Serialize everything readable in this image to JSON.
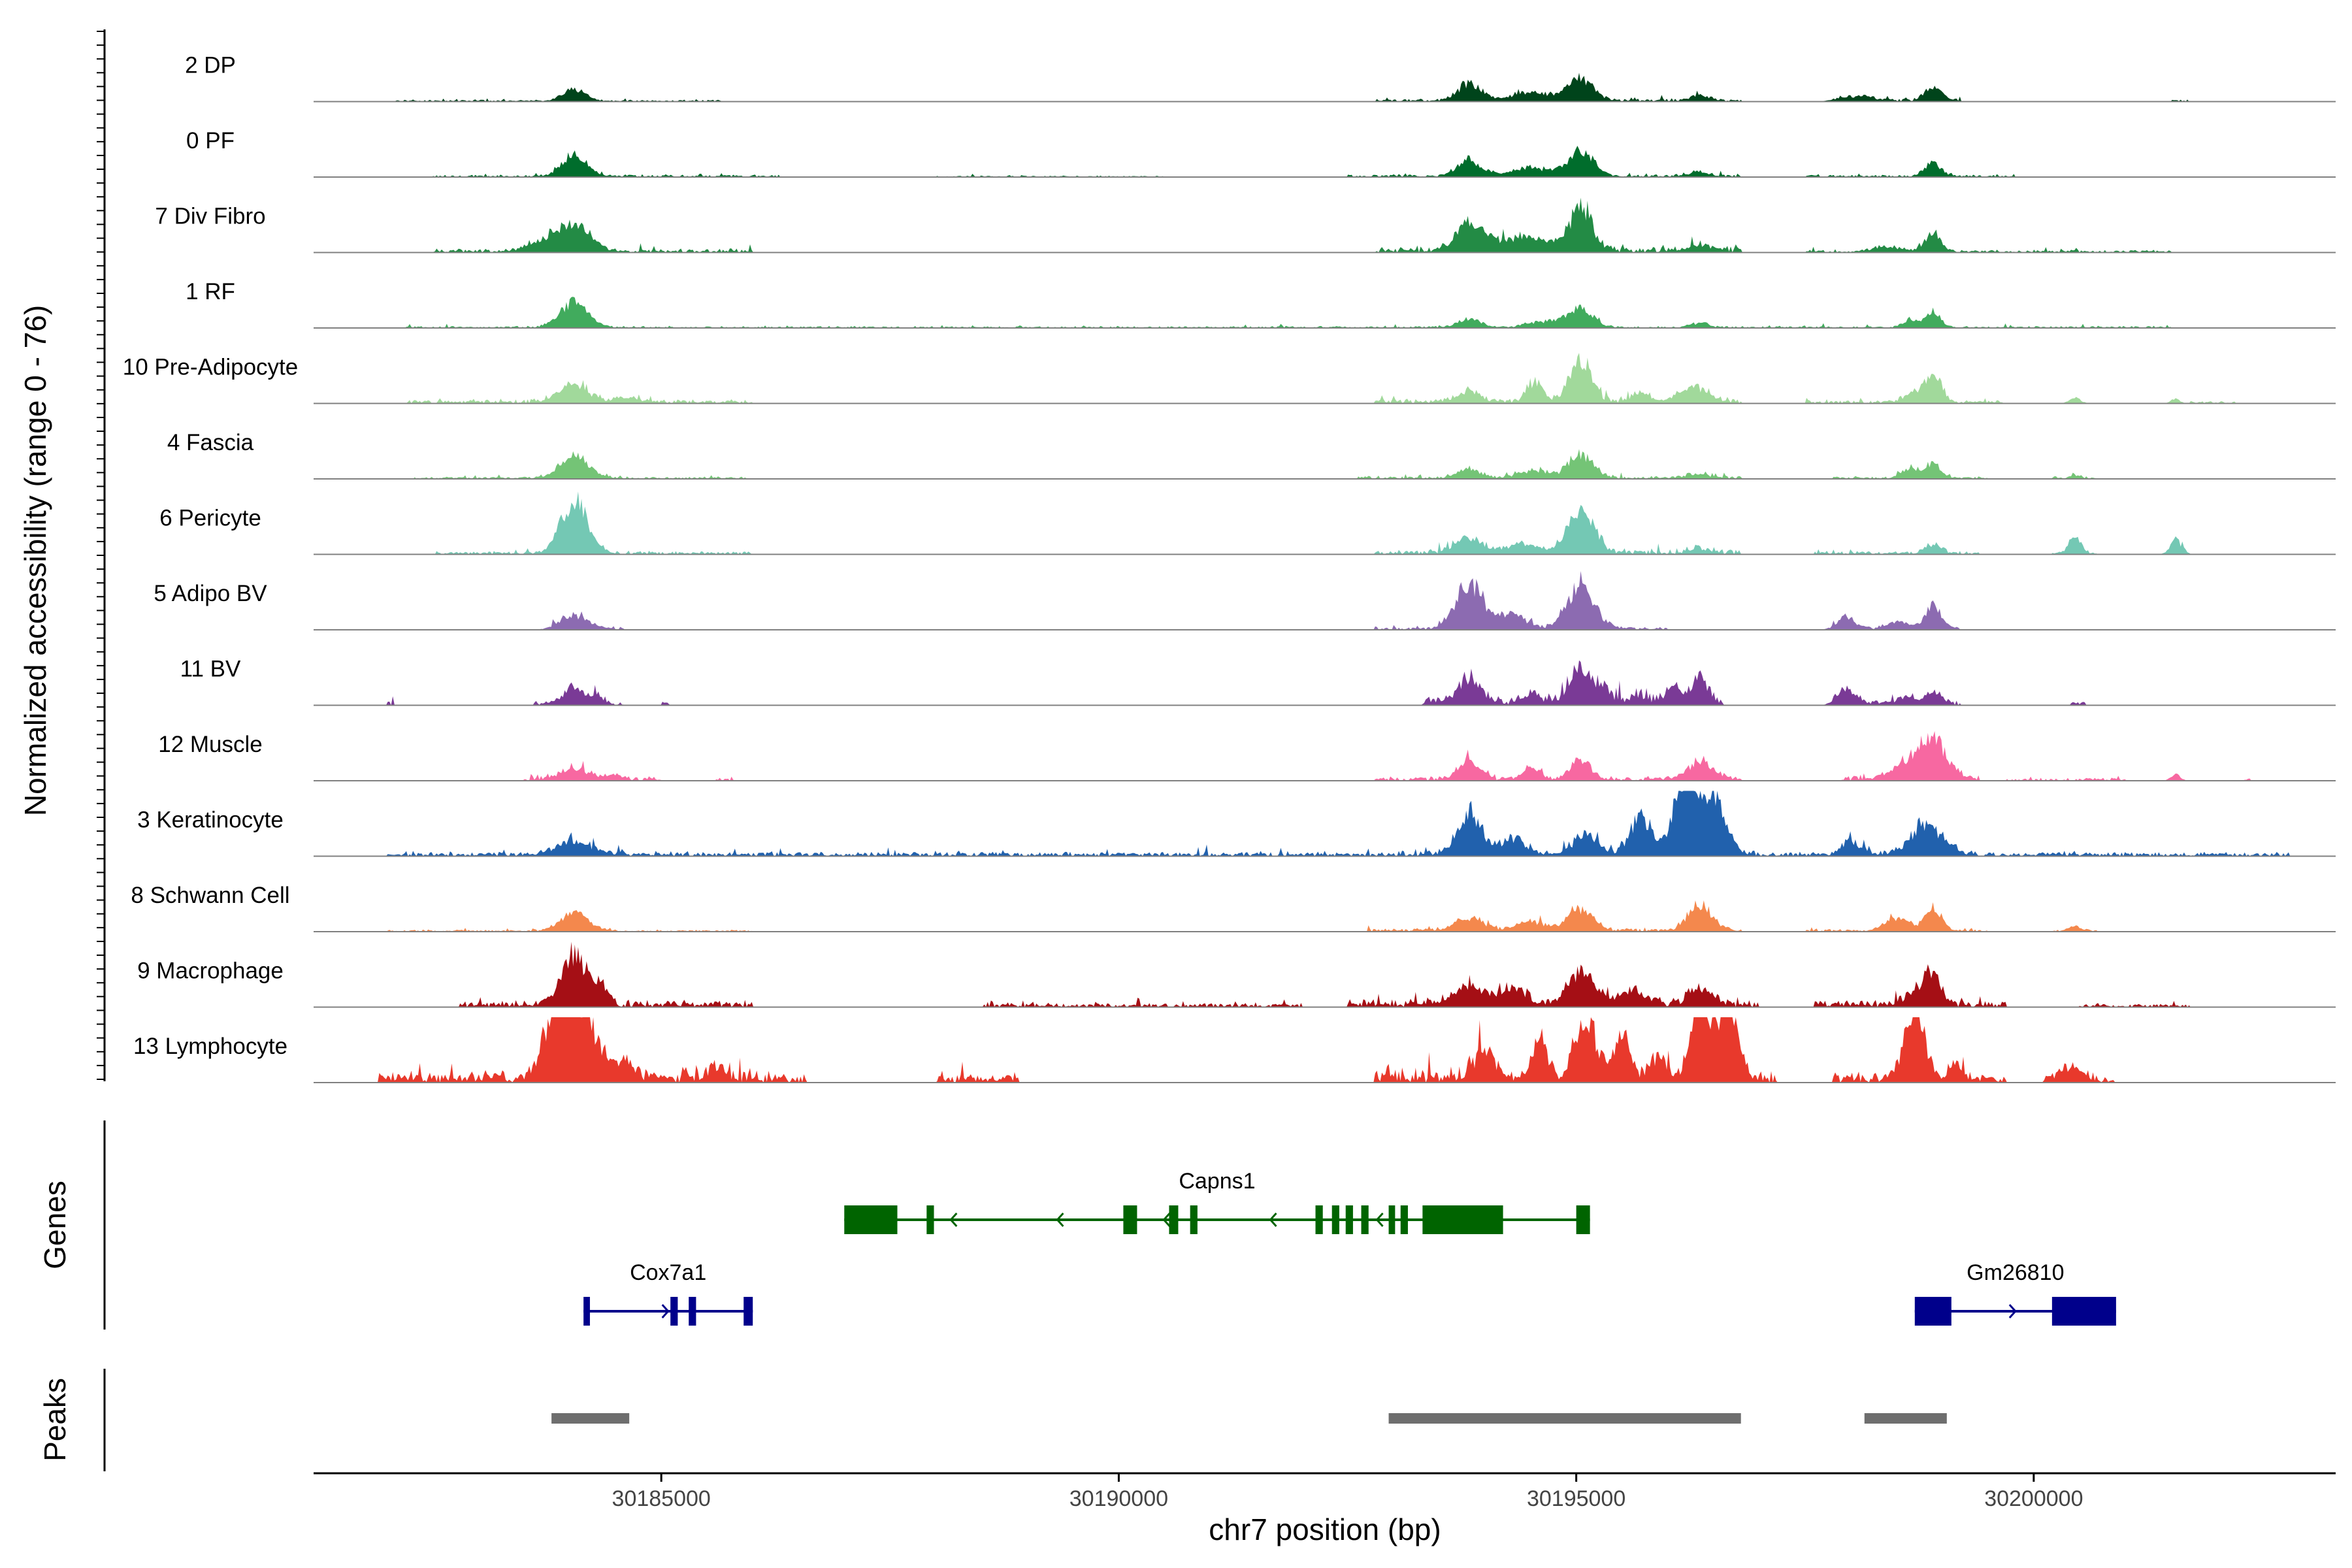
{
  "chart_data": {
    "type": "area",
    "title": "",
    "xlabel": "chr7 position (bp)",
    "ylabel": "Normalized accessibility (range 0 - 76)",
    "ylim": [
      0,
      76
    ],
    "xlim": [
      30181200,
      30203300
    ],
    "x_ticks": [
      30185000,
      30190000,
      30195000,
      30200000
    ],
    "x_tick_labels": [
      "30185000",
      "30190000",
      "30195000",
      "30200000"
    ],
    "panels": {
      "genes": "Genes",
      "peaks": "Peaks"
    },
    "tracks": [
      {
        "name": "2 DP",
        "color": "#00441b",
        "scale": 0.5,
        "peaks": [
          [
            30184050,
            14,
            120
          ],
          [
            30193830,
            20,
            120
          ],
          [
            30194500,
            10,
            200
          ],
          [
            30195050,
            26,
            140
          ],
          [
            30196350,
            6,
            100
          ],
          [
            30198050,
            5,
            180
          ],
          [
            30198900,
            16,
            90
          ]
        ],
        "noise": [
          [
            30182100,
            30185700,
            1
          ],
          [
            30192800,
            30196800,
            1.5
          ],
          [
            30197800,
            30199200,
            1.5
          ],
          [
            30201500,
            30201700,
            1
          ]
        ]
      },
      {
        "name": "0 PF",
        "color": "#006d2c",
        "scale": 0.6,
        "peaks": [
          [
            30184050,
            22,
            130
          ],
          [
            30193830,
            16,
            130
          ],
          [
            30194500,
            8,
            200
          ],
          [
            30195050,
            24,
            140
          ],
          [
            30196350,
            4,
            100
          ],
          [
            30198900,
            12,
            90
          ]
        ],
        "noise": [
          [
            30182500,
            30186300,
            1
          ],
          [
            30188000,
            30190500,
            0.6
          ],
          [
            30192500,
            30196800,
            1.2
          ],
          [
            30197500,
            30199800,
            1
          ]
        ]
      },
      {
        "name": "7 Div Fibro",
        "color": "#238b45",
        "scale": 0.72,
        "peaks": [
          [
            30184050,
            22,
            170
          ],
          [
            30183700,
            8,
            150
          ],
          [
            30193830,
            20,
            150
          ],
          [
            30194400,
            10,
            300
          ],
          [
            30195050,
            32,
            130
          ],
          [
            30196350,
            5,
            120
          ],
          [
            30198900,
            14,
            90
          ],
          [
            30198400,
            4,
            150
          ]
        ],
        "noise": [
          [
            30182500,
            30186000,
            1.5
          ],
          [
            30192800,
            30196800,
            2
          ],
          [
            30197500,
            30201500,
            1
          ]
        ]
      },
      {
        "name": "1 RF",
        "color": "#41ab5d",
        "scale": 0.62,
        "peaks": [
          [
            30184050,
            24,
            150
          ],
          [
            30193830,
            8,
            120
          ],
          [
            30194700,
            6,
            200
          ],
          [
            30195050,
            18,
            130
          ],
          [
            30196350,
            4,
            100
          ],
          [
            30198650,
            8,
            70
          ],
          [
            30198900,
            14,
            80
          ]
        ],
        "noise": [
          [
            30182200,
            30201500,
            0.8
          ]
        ]
      },
      {
        "name": "10 Pre-Adipocyte",
        "color": "#a1d99b",
        "scale": 0.85,
        "peaks": [
          [
            30184050,
            12,
            160
          ],
          [
            30184600,
            4,
            100
          ],
          [
            30193830,
            7,
            120
          ],
          [
            30194550,
            14,
            90
          ],
          [
            30195050,
            30,
            120
          ],
          [
            30195700,
            6,
            100
          ],
          [
            30196300,
            10,
            150
          ],
          [
            30198650,
            6,
            90
          ],
          [
            30198900,
            20,
            90
          ],
          [
            30200450,
            4,
            60
          ],
          [
            30201550,
            3,
            50
          ]
        ],
        "noise": [
          [
            30182200,
            30186000,
            1.2
          ],
          [
            30192800,
            30196800,
            1.5
          ],
          [
            30197500,
            30199700,
            1
          ],
          [
            30201700,
            30202200,
            0.8
          ]
        ]
      },
      {
        "name": "4 Fascia",
        "color": "#74c476",
        "scale": 0.6,
        "peaks": [
          [
            30184050,
            22,
            150
          ],
          [
            30193830,
            8,
            130
          ],
          [
            30194550,
            8,
            140
          ],
          [
            30195050,
            22,
            130
          ],
          [
            30196350,
            4,
            120
          ],
          [
            30198650,
            10,
            90
          ],
          [
            30198900,
            14,
            80
          ],
          [
            30200450,
            3,
            60
          ]
        ],
        "noise": [
          [
            30182300,
            30186000,
            1
          ],
          [
            30192600,
            30196800,
            1.5
          ],
          [
            30197800,
            30199500,
            1
          ],
          [
            30200200,
            30200700,
            0.8
          ]
        ]
      },
      {
        "name": "6 Pericyte",
        "color": "#74c8b4",
        "scale": 0.86,
        "peaks": [
          [
            30184050,
            36,
            140
          ],
          [
            30193830,
            10,
            150
          ],
          [
            30194400,
            6,
            150
          ],
          [
            30195050,
            28,
            140
          ],
          [
            30196350,
            3,
            120
          ],
          [
            30198900,
            6,
            90
          ],
          [
            30200450,
            10,
            70
          ],
          [
            30201550,
            10,
            60
          ]
        ],
        "noise": [
          [
            30182500,
            30186000,
            1
          ],
          [
            30192800,
            30196800,
            1.5
          ],
          [
            30197600,
            30199400,
            1
          ],
          [
            30200200,
            30200700,
            0.8
          ],
          [
            30201500,
            30201700,
            0.8
          ]
        ]
      },
      {
        "name": "5 Adipo BV",
        "color": "#8c6bb1",
        "scale": 0.82,
        "peaks": [
          [
            30184050,
            10,
            150
          ],
          [
            30193830,
            32,
            150
          ],
          [
            30194300,
            10,
            150
          ],
          [
            30195050,
            30,
            150
          ],
          [
            30197950,
            8,
            100
          ],
          [
            30198500,
            6,
            100
          ],
          [
            30198900,
            16,
            90
          ]
        ],
        "noise": [
          [
            30183800,
            30184600,
            1
          ],
          [
            30192800,
            30196000,
            1
          ],
          [
            30197800,
            30199200,
            1
          ]
        ]
      },
      {
        "name": "11 BV",
        "color": "#7a3a96",
        "scale": 0.8,
        "peaks": [
          [
            30184050,
            12,
            120
          ],
          [
            30184300,
            6,
            60
          ],
          [
            30193830,
            18,
            120
          ],
          [
            30194500,
            6,
            120
          ],
          [
            30195050,
            24,
            120
          ],
          [
            30195300,
            8,
            100
          ],
          [
            30195700,
            6,
            80
          ],
          [
            30196050,
            12,
            80
          ],
          [
            30196350,
            20,
            90
          ],
          [
            30197950,
            10,
            100
          ],
          [
            30198600,
            5,
            80
          ],
          [
            30198900,
            8,
            90
          ]
        ],
        "noise": [
          [
            30183600,
            30184600,
            1
          ],
          [
            30193300,
            30196600,
            3
          ],
          [
            30197800,
            30199200,
            1.5
          ],
          [
            30200400,
            30200600,
            1.5
          ],
          [
            30182000,
            30182100,
            1.5
          ],
          [
            30185000,
            30185100,
            1.5
          ]
        ]
      },
      {
        "name": "12 Muscle",
        "color": "#f768a1",
        "scale": 0.75,
        "peaks": [
          [
            30184050,
            8,
            160
          ],
          [
            30184500,
            4,
            80
          ],
          [
            30193830,
            14,
            120
          ],
          [
            30194500,
            8,
            100
          ],
          [
            30195050,
            16,
            110
          ],
          [
            30196350,
            14,
            140
          ],
          [
            30198700,
            16,
            200
          ],
          [
            30198900,
            24,
            120
          ],
          [
            30199150,
            4,
            60
          ],
          [
            30201550,
            5,
            50
          ]
        ],
        "noise": [
          [
            30183500,
            30185000,
            1.5
          ],
          [
            30192800,
            30196800,
            1.5
          ],
          [
            30197900,
            30199400,
            2
          ],
          [
            30199700,
            30201000,
            1
          ],
          [
            30185600,
            30185800,
            1
          ],
          [
            30202300,
            30202400,
            0.8
          ]
        ]
      },
      {
        "name": "3 Keratinocyte",
        "color": "#2161ad",
        "scale": 0.95,
        "peaks": [
          [
            30184050,
            8,
            200
          ],
          [
            30193830,
            24,
            130
          ],
          [
            30194300,
            8,
            150
          ],
          [
            30195100,
            12,
            120
          ],
          [
            30195700,
            22,
            110
          ],
          [
            30196200,
            42,
            140
          ],
          [
            30196500,
            32,
            130
          ],
          [
            30198000,
            8,
            100
          ],
          [
            30198900,
            14,
            150
          ],
          [
            30198700,
            8,
            120
          ]
        ],
        "noise": [
          [
            30182000,
            30202800,
            1.2
          ],
          [
            30193000,
            30197000,
            2
          ],
          [
            30197800,
            30199200,
            1.5
          ]
        ]
      },
      {
        "name": "8 Schwann Cell",
        "color": "#f4884d",
        "scale": 0.62,
        "peaks": [
          [
            30184050,
            16,
            160
          ],
          [
            30193830,
            12,
            150
          ],
          [
            30194500,
            8,
            150
          ],
          [
            30195050,
            20,
            140
          ],
          [
            30196350,
            24,
            130
          ],
          [
            30198500,
            12,
            120
          ],
          [
            30198900,
            22,
            90
          ],
          [
            30200450,
            4,
            80
          ]
        ],
        "noise": [
          [
            30182000,
            30186000,
            0.8
          ],
          [
            30192700,
            30196800,
            1.5
          ],
          [
            30197500,
            30199500,
            1
          ],
          [
            30200200,
            30200700,
            0.8
          ]
        ]
      },
      {
        "name": "9 Macrophage",
        "color": "#a50f15",
        "scale": 0.9,
        "peaks": [
          [
            30184050,
            32,
            140
          ],
          [
            30184350,
            10,
            80
          ],
          [
            30193830,
            12,
            140
          ],
          [
            30194300,
            10,
            150
          ],
          [
            30195050,
            22,
            140
          ],
          [
            30195600,
            8,
            150
          ],
          [
            30196350,
            12,
            110
          ],
          [
            30198700,
            8,
            120
          ],
          [
            30198900,
            18,
            90
          ]
        ],
        "noise": [
          [
            30182800,
            30186000,
            2
          ],
          [
            30192500,
            30197000,
            2.5
          ],
          [
            30197600,
            30199700,
            2
          ],
          [
            30182900,
            30183000,
            2
          ],
          [
            30188500,
            30192000,
            1.2
          ],
          [
            30200500,
            30201700,
            1
          ]
        ]
      },
      {
        "name": "13 Lymphocyte",
        "color": "#e8392c",
        "scale": 1.0,
        "peaks": [
          [
            30183850,
            36,
            140
          ],
          [
            30184050,
            38,
            110
          ],
          [
            30184250,
            24,
            120
          ],
          [
            30184600,
            10,
            100
          ],
          [
            30185600,
            6,
            80
          ],
          [
            30194000,
            14,
            120
          ],
          [
            30194600,
            20,
            80
          ],
          [
            30195100,
            36,
            110
          ],
          [
            30195500,
            24,
            90
          ],
          [
            30195900,
            12,
            80
          ],
          [
            30196350,
            48,
            90
          ],
          [
            30196650,
            46,
            110
          ],
          [
            30198700,
            40,
            110
          ],
          [
            30199150,
            8,
            80
          ],
          [
            30200400,
            8,
            120
          ]
        ],
        "noise": [
          [
            30181900,
            30186400,
            3
          ],
          [
            30186000,
            30186600,
            2
          ],
          [
            30188000,
            30188900,
            2
          ],
          [
            30192800,
            30197200,
            4
          ],
          [
            30197800,
            30199700,
            2.5
          ],
          [
            30200100,
            30200900,
            2
          ],
          [
            30188200,
            30188300,
            3
          ]
        ]
      }
    ],
    "genes": [
      {
        "name": "Capns1",
        "color": "#006400",
        "start": 30187000,
        "end": 30195150,
        "strand": "-",
        "row": 0,
        "exons": [
          [
            30187000,
            30187580
          ],
          [
            30187900,
            30187980
          ],
          [
            30190050,
            30190200
          ],
          [
            30190550,
            30190650
          ],
          [
            30190780,
            30190860
          ],
          [
            30192150,
            30192230
          ],
          [
            30192330,
            30192410
          ],
          [
            30192480,
            30192560
          ],
          [
            30192650,
            30192730
          ],
          [
            30192950,
            30193020
          ],
          [
            30193080,
            30193160
          ],
          [
            30193320,
            30194200
          ],
          [
            30195000,
            30195150
          ]
        ]
      },
      {
        "name": "Cox7a1",
        "color": "#00008b",
        "start": 30184150,
        "end": 30186000,
        "strand": "+",
        "row": 1,
        "exons": [
          [
            30184150,
            30184220
          ],
          [
            30185100,
            30185180
          ],
          [
            30185300,
            30185380
          ],
          [
            30185900,
            30186000
          ]
        ]
      },
      {
        "name": "Gm26810",
        "color": "#00008b",
        "start": 30198700,
        "end": 30200900,
        "strand": "+",
        "row": 1,
        "exons": [
          [
            30198700,
            30199100
          ],
          [
            30200200,
            30200900
          ]
        ]
      }
    ],
    "peak_regions": [
      [
        30183800,
        30184650
      ],
      [
        30192950,
        30196800
      ],
      [
        30198150,
        30199050
      ]
    ]
  }
}
